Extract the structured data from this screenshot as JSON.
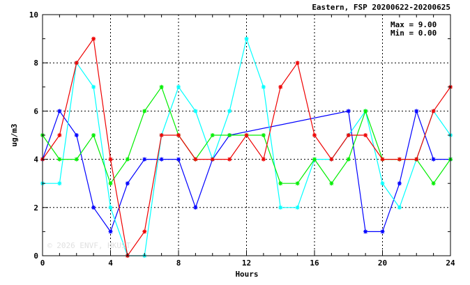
{
  "chart_data": {
    "type": "line",
    "title": "Eastern, FSP 20200622-20200625",
    "xlabel": "Hours",
    "ylabel": "ug/m3",
    "xlim": [
      0,
      24
    ],
    "ylim": [
      0,
      10
    ],
    "xticks": [
      "0",
      "4",
      "8",
      "12",
      "16",
      "20",
      "24"
    ],
    "yticks": [
      "0",
      "2",
      "4",
      "6",
      "8",
      "10"
    ],
    "grid": true,
    "stats": {
      "max": "Max = 9.00",
      "min": "Min = 0.00"
    },
    "watermark": "© 2026 ENVF, HKUST",
    "series": [
      {
        "color": "#0000ff",
        "points": [
          [
            0,
            4
          ],
          [
            1,
            6
          ],
          [
            2,
            5
          ],
          [
            3,
            2
          ],
          [
            4,
            1
          ],
          [
            5,
            3
          ],
          [
            6,
            4
          ],
          [
            7,
            4
          ],
          [
            8,
            4
          ],
          [
            9,
            2
          ],
          [
            10,
            4
          ],
          [
            11,
            5
          ],
          [
            18,
            6
          ],
          [
            19,
            1
          ],
          [
            20,
            1
          ],
          [
            21,
            3
          ],
          [
            22,
            6
          ],
          [
            23,
            4
          ],
          [
            24,
            4
          ]
        ]
      },
      {
        "color": "#00ffff",
        "points": [
          [
            0,
            3
          ],
          [
            1,
            3
          ],
          [
            2,
            8
          ],
          [
            3,
            7
          ],
          [
            4,
            2
          ],
          [
            5,
            0
          ],
          [
            6,
            0
          ],
          [
            7,
            5
          ],
          [
            8,
            7
          ],
          [
            9,
            6
          ],
          [
            10,
            4
          ],
          [
            11,
            6
          ],
          [
            12,
            9
          ],
          [
            13,
            7
          ],
          [
            14,
            2
          ],
          [
            15,
            2
          ],
          [
            16,
            4
          ],
          [
            17,
            4
          ],
          [
            18,
            5
          ],
          [
            19,
            6
          ],
          [
            20,
            3
          ],
          [
            21,
            2
          ],
          [
            22,
            4
          ],
          [
            23,
            6
          ],
          [
            24,
            5
          ]
        ]
      },
      {
        "color": "#00ee00",
        "points": [
          [
            0,
            5
          ],
          [
            1,
            4
          ],
          [
            2,
            4
          ],
          [
            3,
            5
          ],
          [
            4,
            3
          ],
          [
            5,
            4
          ],
          [
            6,
            6
          ],
          [
            7,
            7
          ],
          [
            8,
            5
          ],
          [
            9,
            4
          ],
          [
            10,
            5
          ],
          [
            11,
            5
          ],
          [
            12,
            5
          ],
          [
            13,
            5
          ],
          [
            14,
            3
          ],
          [
            15,
            3
          ],
          [
            16,
            4
          ],
          [
            17,
            3
          ],
          [
            18,
            4
          ],
          [
            19,
            6
          ],
          [
            20,
            4
          ],
          [
            21,
            4
          ],
          [
            22,
            4
          ],
          [
            23,
            3
          ],
          [
            24,
            4
          ]
        ]
      },
      {
        "color": "#ee0000",
        "points": [
          [
            0,
            4
          ],
          [
            1,
            5
          ],
          [
            2,
            8
          ],
          [
            3,
            9
          ],
          [
            4,
            4
          ],
          [
            5,
            0
          ],
          [
            6,
            1
          ],
          [
            7,
            5
          ],
          [
            8,
            5
          ],
          [
            9,
            4
          ],
          [
            10,
            4
          ],
          [
            11,
            4
          ],
          [
            12,
            5
          ],
          [
            13,
            4
          ],
          [
            14,
            7
          ],
          [
            15,
            8
          ],
          [
            16,
            5
          ],
          [
            17,
            4
          ],
          [
            18,
            5
          ],
          [
            19,
            5
          ],
          [
            20,
            4
          ],
          [
            21,
            4
          ],
          [
            22,
            4
          ],
          [
            23,
            6
          ],
          [
            24,
            7
          ]
        ]
      }
    ]
  }
}
